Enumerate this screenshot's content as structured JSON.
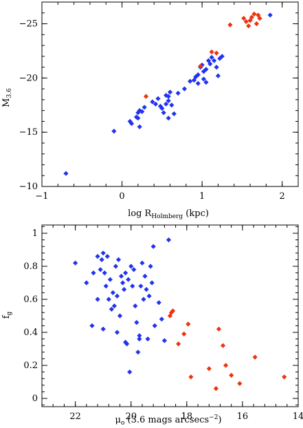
{
  "chart_data": [
    {
      "type": "scatter",
      "title": "",
      "xlabel": "log R",
      "xlabel_sub": "Holmberg",
      "xlabel_unit": "(kpc)",
      "ylabel": "M",
      "ylabel_sub": "3.6",
      "xlim": [
        -1,
        2.2
      ],
      "ylim": [
        -10,
        -27
      ],
      "x_ticks": [
        -1,
        0,
        1,
        2
      ],
      "x_tick_labels": [
        "−1",
        "0",
        "1",
        "2"
      ],
      "y_ticks": [
        -10,
        -15,
        -20,
        -25
      ],
      "y_tick_labels": [
        "−10",
        "−15",
        "−20",
        "−25"
      ],
      "grid": false,
      "series": [
        {
          "color": "#2233ee",
          "marker": "diamond",
          "points": [
            [
              -0.7,
              -11.2
            ],
            [
              -0.1,
              -15.1
            ],
            [
              0.1,
              -16.0
            ],
            [
              0.12,
              -15.8
            ],
            [
              0.18,
              -16.4
            ],
            [
              0.2,
              -16.8
            ],
            [
              0.22,
              -17.0
            ],
            [
              0.25,
              -16.9
            ],
            [
              0.2,
              -16.3
            ],
            [
              0.28,
              -17.3
            ],
            [
              0.22,
              -15.5
            ],
            [
              0.38,
              -17.8
            ],
            [
              0.42,
              -17.6
            ],
            [
              0.45,
              -18.1
            ],
            [
              0.48,
              -17.4
            ],
            [
              0.5,
              -17.2
            ],
            [
              0.52,
              -16.8
            ],
            [
              0.55,
              -17.6
            ],
            [
              0.55,
              -18.4
            ],
            [
              0.58,
              -18.3
            ],
            [
              0.6,
              -18.7
            ],
            [
              0.58,
              -17.9
            ],
            [
              0.62,
              -17.5
            ],
            [
              0.7,
              -18.6
            ],
            [
              0.78,
              -19.0
            ],
            [
              0.65,
              -16.7
            ],
            [
              0.58,
              -16.3
            ],
            [
              0.85,
              -19.7
            ],
            [
              0.9,
              -19.8
            ],
            [
              0.92,
              -20.1
            ],
            [
              0.95,
              -20.3
            ],
            [
              0.98,
              -21.0
            ],
            [
              1.0,
              -21.2
            ],
            [
              1.02,
              -20.6
            ],
            [
              1.05,
              -20.8
            ],
            [
              1.08,
              -21.6
            ],
            [
              1.1,
              -21.3
            ],
            [
              1.12,
              -21.9
            ],
            [
              1.15,
              -21.6
            ],
            [
              1.18,
              -21.0
            ],
            [
              1.2,
              -20.2
            ],
            [
              1.22,
              -21.8
            ],
            [
              1.25,
              -22.0
            ],
            [
              1.05,
              -19.6
            ],
            [
              1.02,
              -19.9
            ],
            [
              0.95,
              -19.5
            ],
            [
              1.85,
              -25.8
            ]
          ]
        },
        {
          "color": "#ee3311",
          "marker": "diamond",
          "points": [
            [
              0.3,
              -18.3
            ],
            [
              0.98,
              -21.1
            ],
            [
              1.12,
              -22.4
            ],
            [
              1.18,
              -22.3
            ],
            [
              1.35,
              -24.9
            ],
            [
              1.52,
              -25.5
            ],
            [
              1.55,
              -25.2
            ],
            [
              1.58,
              -24.8
            ],
            [
              1.62,
              -25.6
            ],
            [
              1.65,
              -25.9
            ],
            [
              1.6,
              -25.3
            ],
            [
              1.7,
              -25.8
            ],
            [
              1.72,
              -25.5
            ],
            [
              1.68,
              -25.0
            ]
          ]
        }
      ]
    },
    {
      "type": "scatter",
      "title": "",
      "xlabel": "μ",
      "xlabel_sub": "o",
      "xlabel_unit": "(3.6 mags arcsecs",
      "xlabel_sup": "−2",
      "xlabel_end": ")",
      "ylabel": "f",
      "ylabel_sub": "g",
      "xlim": [
        23.2,
        14
      ],
      "ylim": [
        -0.05,
        1.05
      ],
      "x_ticks": [
        22,
        20,
        18,
        16,
        14
      ],
      "x_tick_labels": [
        "22",
        "20",
        "18",
        "16",
        "14"
      ],
      "y_ticks": [
        0,
        0.2,
        0.4,
        0.6,
        0.8,
        1
      ],
      "y_tick_labels": [
        "0",
        "0.2",
        "0.4",
        "0.6",
        "0.8",
        "1"
      ],
      "grid": false,
      "series": [
        {
          "color": "#2233ee",
          "marker": "diamond",
          "points": [
            [
              22.0,
              0.82
            ],
            [
              21.6,
              0.7
            ],
            [
              21.35,
              0.76
            ],
            [
              21.2,
              0.86
            ],
            [
              21.1,
              0.78
            ],
            [
              21.05,
              0.84
            ],
            [
              21.0,
              0.88
            ],
            [
              20.95,
              0.76
            ],
            [
              20.9,
              0.68
            ],
            [
              20.85,
              0.86
            ],
            [
              20.8,
              0.6
            ],
            [
              20.75,
              0.72
            ],
            [
              20.7,
              0.54
            ],
            [
              20.65,
              0.64
            ],
            [
              20.6,
              0.56
            ],
            [
              20.55,
              0.8
            ],
            [
              20.5,
              0.62
            ],
            [
              20.45,
              0.84
            ],
            [
              20.4,
              0.5
            ],
            [
              20.35,
              0.74
            ],
            [
              20.3,
              0.7
            ],
            [
              20.25,
              0.66
            ],
            [
              20.2,
              0.76
            ],
            [
              20.15,
              0.33
            ],
            [
              20.1,
              0.72
            ],
            [
              20.05,
              0.16
            ],
            [
              20.0,
              0.8
            ],
            [
              19.95,
              0.68
            ],
            [
              19.9,
              0.78
            ],
            [
              19.85,
              0.56
            ],
            [
              19.8,
              0.46
            ],
            [
              19.75,
              0.28
            ],
            [
              19.7,
              0.38
            ],
            [
              19.65,
              0.68
            ],
            [
              19.6,
              0.82
            ],
            [
              19.55,
              0.6
            ],
            [
              19.5,
              0.74
            ],
            [
              19.45,
              0.66
            ],
            [
              19.4,
              0.36
            ],
            [
              19.35,
              0.62
            ],
            [
              19.3,
              0.8
            ],
            [
              19.25,
              0.7
            ],
            [
              19.2,
              0.92
            ],
            [
              19.15,
              0.44
            ],
            [
              19.0,
              0.58
            ],
            [
              18.9,
              0.48
            ],
            [
              18.8,
              0.35
            ],
            [
              18.65,
              0.96
            ],
            [
              21.2,
              0.6
            ],
            [
              21.0,
              0.42
            ],
            [
              20.5,
              0.4
            ],
            [
              20.2,
              0.34
            ],
            [
              19.7,
              0.36
            ],
            [
              21.4,
              0.44
            ]
          ]
        },
        {
          "color": "#ee3311",
          "marker": "diamond",
          "points": [
            [
              18.6,
              0.5
            ],
            [
              18.55,
              0.52
            ],
            [
              18.5,
              0.53
            ],
            [
              18.3,
              0.33
            ],
            [
              18.1,
              0.39
            ],
            [
              17.95,
              0.45
            ],
            [
              17.85,
              0.13
            ],
            [
              17.2,
              0.18
            ],
            [
              16.95,
              0.06
            ],
            [
              16.85,
              0.42
            ],
            [
              16.7,
              0.32
            ],
            [
              16.6,
              0.2
            ],
            [
              16.4,
              0.14
            ],
            [
              16.1,
              0.09
            ],
            [
              15.55,
              0.25
            ],
            [
              14.5,
              0.13
            ]
          ]
        }
      ]
    }
  ]
}
